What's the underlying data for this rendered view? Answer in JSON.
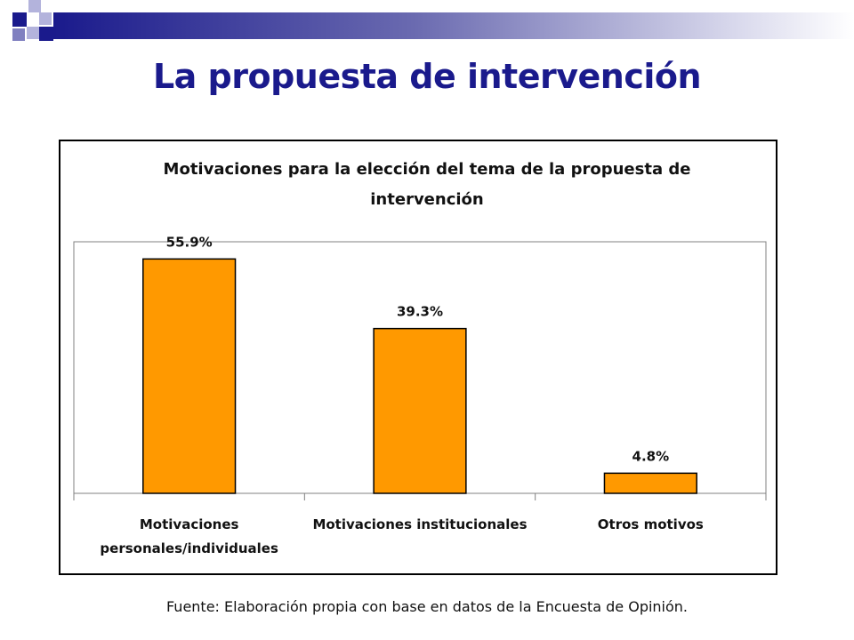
{
  "slide": {
    "title": "La propuesta de intervención",
    "source": "Fuente: Elaboración propia con base en datos de la Encuesta de Opinión."
  },
  "colors": {
    "title": "#1a1a8c",
    "bar_fill": "#ff9900",
    "bar_stroke": "#000000"
  },
  "chart_data": {
    "type": "bar",
    "title_line_1": "Motivaciones para la elección del tema de la propuesta de",
    "title_line_2": "intervención",
    "categories": [
      [
        "Motivaciones",
        "personales/individuales"
      ],
      [
        "Motivaciones institucionales"
      ],
      [
        "Otros motivos"
      ]
    ],
    "values": [
      55.9,
      39.3,
      4.8
    ],
    "data_labels": [
      "55.9%",
      "39.3%",
      "4.8%"
    ],
    "ylim": [
      0,
      60
    ],
    "grid": false,
    "legend": "none"
  }
}
